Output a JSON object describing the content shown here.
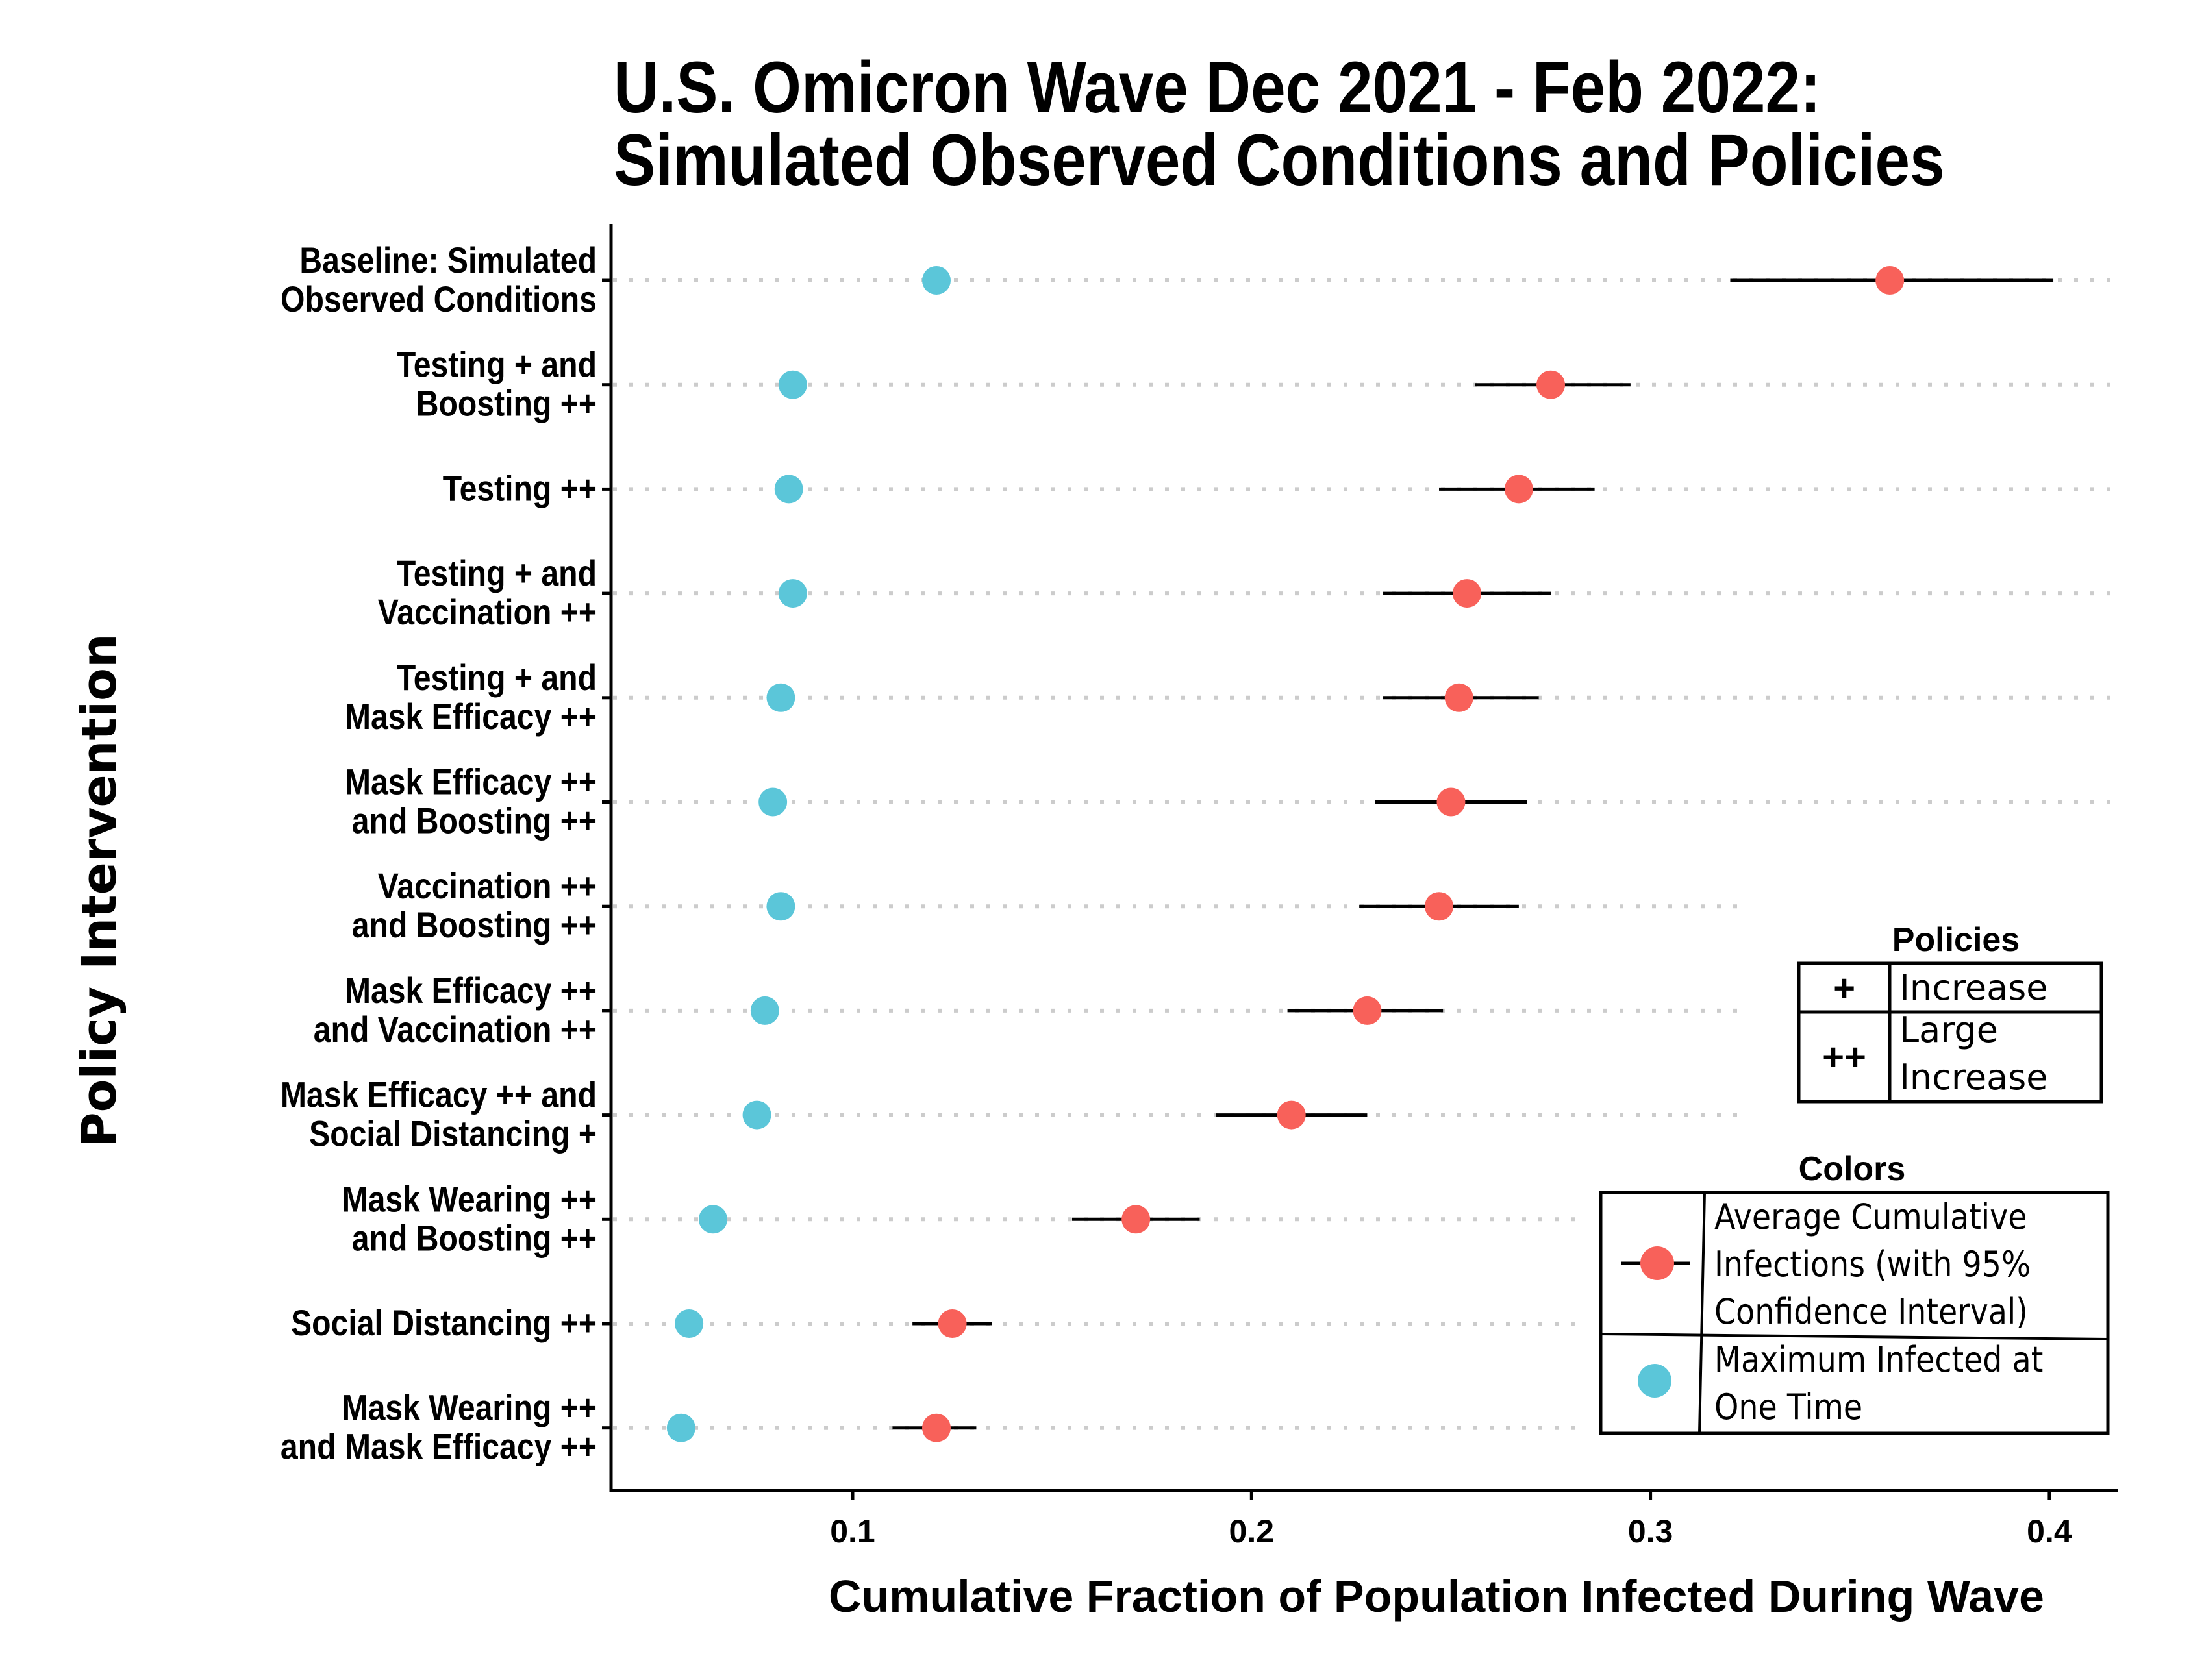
{
  "chart_data": {
    "type": "scatter",
    "title": [
      "U.S. Omicron Wave Dec 2021 - Feb 2022:",
      "Simulated Observed Conditions and Policies"
    ],
    "xlabel": "Cumulative Fraction of Population Infected During Wave",
    "ylabel": "Policy Intervention",
    "xlim": [
      0.041,
      0.417
    ],
    "x_ticks": [
      0.1,
      0.2,
      0.3,
      0.4
    ],
    "x_tick_labels": [
      "0.1",
      "0.2",
      "0.3",
      "0.4"
    ],
    "grid": "horizontal dotted reference lines per category",
    "categories": [
      [
        "Baseline: Simulated",
        "Observed Conditions"
      ],
      [
        "Testing + and",
        "Boosting ++"
      ],
      [
        "Testing ++"
      ],
      [
        "Testing + and",
        "Vaccination ++"
      ],
      [
        "Testing + and",
        "Mask Efficacy ++"
      ],
      [
        "Mask Efficacy ++",
        "and Boosting ++"
      ],
      [
        "Vaccination ++",
        "and Boosting ++"
      ],
      [
        "Mask Efficacy ++",
        "and Vaccination ++"
      ],
      [
        "Mask Efficacy ++ and",
        "Social Distancing +"
      ],
      [
        "Mask Wearing ++",
        "and Boosting ++"
      ],
      [
        "Social Distancing ++"
      ],
      [
        "Mask Wearing ++",
        "and Mask Efficacy ++"
      ]
    ],
    "series": [
      {
        "name": "Average Cumulative Infections (with 95% Confidence Interval)",
        "color": "#F8615A",
        "values": [
          0.36,
          0.275,
          0.267,
          0.254,
          0.252,
          0.25,
          0.247,
          0.229,
          0.21,
          0.171,
          0.125,
          0.121
        ],
        "ci_low": [
          0.32,
          0.256,
          0.247,
          0.233,
          0.233,
          0.231,
          0.227,
          0.209,
          0.191,
          0.155,
          0.115,
          0.11
        ],
        "ci_high": [
          0.401,
          0.295,
          0.286,
          0.275,
          0.272,
          0.269,
          0.267,
          0.248,
          0.229,
          0.187,
          0.135,
          0.131
        ]
      },
      {
        "name": "Maximum Infected at One Time",
        "color": "#5BC6D9",
        "values": [
          0.121,
          0.085,
          0.084,
          0.085,
          0.082,
          0.08,
          0.082,
          0.078,
          0.076,
          0.065,
          0.059,
          0.057
        ]
      }
    ],
    "legends": {
      "policies": {
        "title": "Policies",
        "placement": "right",
        "rows": [
          {
            "symbol": "+",
            "label": [
              "Increase"
            ]
          },
          {
            "symbol": "++",
            "label": [
              "Large",
              "Increase"
            ]
          }
        ]
      },
      "colors": {
        "title": "Colors",
        "placement": "bottom-right",
        "rows": [
          {
            "key": "avg",
            "label": [
              "Average Cumulative",
              "Infections (with 95%",
              "Confidence Interval)"
            ]
          },
          {
            "key": "max",
            "label": [
              "Maximum Infected at",
              "One Time"
            ]
          }
        ]
      }
    }
  },
  "colors": {
    "red": "#F8615A",
    "cyan": "#5BC6D9",
    "grid": "#CCCCCC",
    "axis": "#000000"
  }
}
